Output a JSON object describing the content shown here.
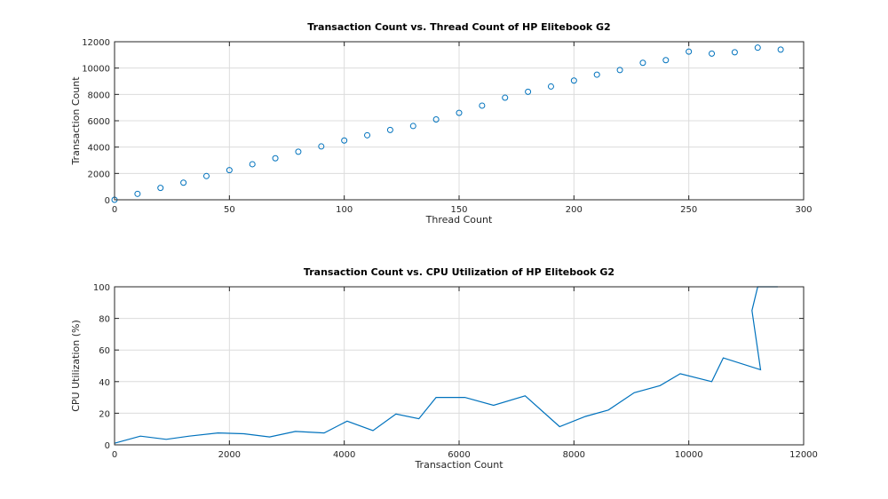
{
  "chart_data": [
    {
      "type": "scatter",
      "title": "Transaction Count vs. Thread Count of HP Elitebook G2",
      "xlabel": "Thread Count",
      "ylabel": "Transaction Count",
      "xlim": [
        0,
        300
      ],
      "ylim": [
        0,
        12000
      ],
      "xticks": [
        0,
        50,
        100,
        150,
        200,
        250,
        300
      ],
      "yticks": [
        0,
        2000,
        4000,
        6000,
        8000,
        10000,
        12000
      ],
      "grid": true,
      "marker": "circle",
      "color": "#0072bd",
      "x": [
        0,
        10,
        20,
        30,
        40,
        50,
        60,
        70,
        80,
        90,
        100,
        110,
        120,
        130,
        140,
        150,
        160,
        170,
        180,
        190,
        200,
        210,
        220,
        230,
        240,
        250,
        260,
        270,
        280,
        290
      ],
      "y": [
        0,
        450,
        900,
        1300,
        1800,
        2250,
        2700,
        3150,
        3650,
        4050,
        4500,
        4900,
        5300,
        5600,
        6100,
        6600,
        7150,
        7750,
        8200,
        8600,
        9050,
        9500,
        9850,
        10400,
        10600,
        11250,
        11100,
        11200,
        11550,
        11400
      ]
    },
    {
      "type": "line",
      "title": "Transaction Count vs. CPU Utilization of HP Elitebook G2",
      "xlabel": "Transaction Count",
      "ylabel": "CPU Utilization (%)",
      "xlim": [
        0,
        12000
      ],
      "ylim": [
        0,
        100
      ],
      "xticks": [
        0,
        2000,
        4000,
        6000,
        8000,
        10000,
        12000
      ],
      "yticks": [
        0,
        20,
        40,
        60,
        80,
        100
      ],
      "grid": true,
      "color": "#0072bd",
      "x": [
        0,
        450,
        900,
        1300,
        1800,
        2250,
        2700,
        3150,
        3650,
        4050,
        4500,
        4900,
        5300,
        5600,
        6100,
        6600,
        7150,
        7750,
        8200,
        8600,
        9050,
        9500,
        9850,
        10400,
        10600,
        11250,
        11100,
        11200,
        11550,
        11400
      ],
      "y": [
        1,
        5.5,
        3.5,
        5.5,
        7.5,
        7,
        5,
        8.5,
        7.5,
        15,
        9,
        19.5,
        16.5,
        30,
        30,
        25,
        31,
        11.5,
        18,
        22,
        33,
        37.5,
        45,
        40,
        55,
        47.5,
        85,
        100,
        100,
        100
      ]
    }
  ]
}
